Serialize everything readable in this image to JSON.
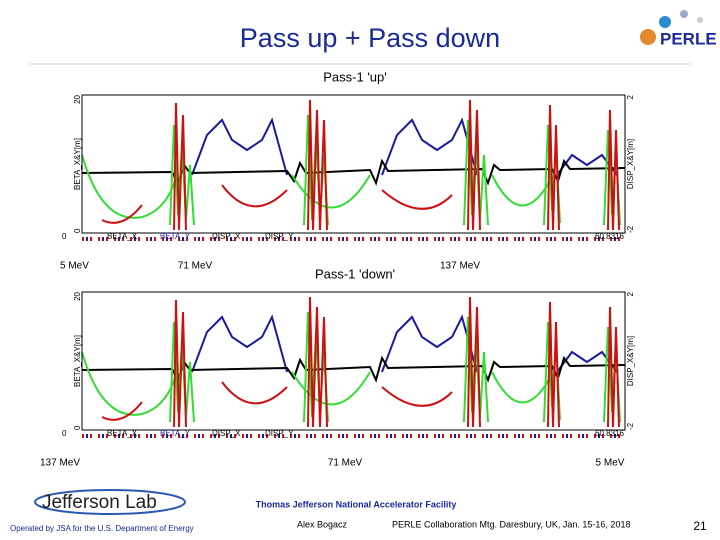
{
  "header": {
    "title": "Pass up + Pass down",
    "logo": "PERLE"
  },
  "panels": [
    {
      "title": "Pass-1 'up'",
      "y_label_left": "BETA_X&Y[m]",
      "y_label_right": "DISP_X&Y[m]",
      "left_ticks": [
        "20",
        "0"
      ],
      "right_ticks": [
        "2",
        "-2"
      ],
      "x_start": "0",
      "x_end": "60.8316",
      "legend": [
        "BETA_X",
        "BETA_Y",
        "DISP_X",
        "DISP_Y"
      ],
      "energy_labels": [
        "5 MeV",
        "71 MeV",
        "137 MeV"
      ]
    },
    {
      "title": "Pass-1 'down'",
      "y_label_left": "BETA_X&Y[m]",
      "y_label_right": "DISP_X&Y[m]",
      "left_ticks": [
        "20",
        "0"
      ],
      "right_ticks": [
        "2",
        "-2"
      ],
      "x_start": "0",
      "x_end": "60.8316",
      "legend": [
        "BETA_X",
        "BETA_Y",
        "DISP_X",
        "DISP_Y"
      ],
      "energy_labels": [
        "137 MeV",
        "71 MeV",
        "5 MeV"
      ]
    }
  ],
  "footer": {
    "lab": "Jefferson Lab",
    "facility": "Thomas Jefferson National Accelerator Facility",
    "operator": "Operated by JSA for the U.S. Department of Energy",
    "author": "Alex Bogacz",
    "meeting": "PERLE Collaboration Mtg. Daresbury, UK, Jan. 15-16, 2018",
    "page": "21"
  }
}
